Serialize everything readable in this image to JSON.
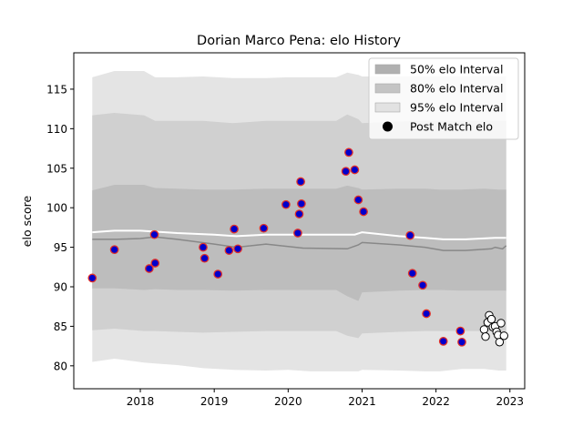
{
  "chart_data": {
    "type": "scatter",
    "title": "Dorian Marco Pena: elo History",
    "xlabel": "",
    "ylabel": "elo score",
    "xlim": [
      2017.1,
      2023.2
    ],
    "ylim": [
      77.1,
      119.6
    ],
    "x_ticks": [
      2018,
      2019,
      2020,
      2021,
      2022,
      2023
    ],
    "y_ticks": [
      80,
      85,
      90,
      95,
      100,
      105,
      110,
      115
    ],
    "grid": false,
    "legend_position": "top-right",
    "legend": [
      {
        "label": "50% elo Interval",
        "kind": "patch",
        "color": "#b0b0b0"
      },
      {
        "label": "80% elo Interval",
        "kind": "patch",
        "color": "#c4c4c4"
      },
      {
        "label": "95% elo Interval",
        "kind": "patch",
        "color": "#e2e2e2"
      },
      {
        "label": "Post Match elo",
        "kind": "marker",
        "color": "#000000"
      }
    ],
    "colors": {
      "band95": "#e4e4e4",
      "band80": "#d0d0d0",
      "band50": "#bdbdbd",
      "mean_line": "#ffffff",
      "median_line": "#888888",
      "point_fill": "#0000cc",
      "point_edge": "#e0302a",
      "future_fill": "#ffffff",
      "future_edge": "#000000"
    },
    "bands": {
      "x": [
        2017.35,
        2017.65,
        2018.05,
        2018.2,
        2018.5,
        2018.85,
        2019.25,
        2019.7,
        2020.0,
        2020.3,
        2020.65,
        2020.8,
        2020.95,
        2021.0,
        2021.5,
        2021.85,
        2022.05,
        2022.35,
        2022.65,
        2022.85,
        2022.95
      ],
      "p95_upper": [
        116.5,
        117.3,
        117.3,
        116.5,
        116.5,
        116.6,
        116.4,
        116.4,
        116.5,
        116.5,
        116.5,
        117.1,
        116.8,
        116.6,
        116.6,
        116.6,
        116.6,
        116.6,
        116.7,
        116.6,
        116.6
      ],
      "p80_upper": [
        111.7,
        112.0,
        111.7,
        111.0,
        111.0,
        111.0,
        110.7,
        111.0,
        111.0,
        111.0,
        111.0,
        111.8,
        111.2,
        110.7,
        110.9,
        111.0,
        111.0,
        111.0,
        111.0,
        111.0,
        111.0
      ],
      "p50_upper": [
        102.2,
        102.9,
        102.9,
        102.5,
        102.4,
        102.3,
        102.3,
        102.4,
        102.4,
        102.4,
        102.4,
        102.8,
        102.5,
        102.3,
        102.4,
        102.4,
        102.3,
        102.3,
        102.4,
        102.3,
        102.3
      ],
      "p50_lower": [
        89.8,
        89.8,
        89.6,
        89.7,
        89.6,
        89.6,
        89.5,
        89.6,
        89.6,
        89.6,
        89.6,
        88.8,
        88.2,
        89.3,
        89.5,
        89.6,
        89.6,
        89.5,
        89.5,
        89.5,
        89.5
      ],
      "p80_lower": [
        84.5,
        84.7,
        84.4,
        84.4,
        84.3,
        84.2,
        84.3,
        84.4,
        84.4,
        84.4,
        84.4,
        83.8,
        83.5,
        84.1,
        84.3,
        84.4,
        84.4,
        84.4,
        84.4,
        84.4,
        84.4
      ],
      "p95_lower": [
        80.5,
        80.9,
        80.4,
        80.3,
        80.1,
        79.7,
        79.5,
        79.4,
        79.5,
        79.3,
        79.3,
        79.3,
        79.3,
        79.5,
        79.4,
        79.3,
        79.3,
        79.6,
        79.6,
        79.4,
        79.4
      ]
    },
    "mean_line": {
      "x": [
        2017.35,
        2017.65,
        2018.0,
        2018.5,
        2019.0,
        2019.3,
        2019.7,
        2020.0,
        2020.5,
        2020.9,
        2021.0,
        2021.5,
        2021.85,
        2022.1,
        2022.4,
        2022.8,
        2022.95
      ],
      "y": [
        96.9,
        97.1,
        97.1,
        96.8,
        96.6,
        96.4,
        96.6,
        96.6,
        96.6,
        96.6,
        96.9,
        96.4,
        96.2,
        96.0,
        96.0,
        96.2,
        96.2
      ]
    },
    "median_line": {
      "x": [
        2017.35,
        2017.65,
        2018.0,
        2018.2,
        2018.5,
        2019.0,
        2019.3,
        2019.7,
        2020.0,
        2020.2,
        2020.8,
        2020.95,
        2021.0,
        2021.5,
        2021.85,
        2022.1,
        2022.4,
        2022.75,
        2022.8,
        2022.9,
        2022.95
      ],
      "y": [
        96.0,
        96.0,
        96.1,
        96.3,
        96.0,
        95.4,
        95.0,
        95.4,
        95.1,
        94.9,
        94.8,
        95.3,
        95.6,
        95.3,
        95.0,
        94.6,
        94.6,
        94.8,
        95.0,
        94.8,
        95.2
      ]
    },
    "post_match_points": [
      {
        "x": 2017.35,
        "y": 91.1
      },
      {
        "x": 2017.65,
        "y": 94.7
      },
      {
        "x": 2018.12,
        "y": 92.3
      },
      {
        "x": 2018.19,
        "y": 96.6
      },
      {
        "x": 2018.2,
        "y": 93.0
      },
      {
        "x": 2018.85,
        "y": 95.0
      },
      {
        "x": 2018.87,
        "y": 93.6
      },
      {
        "x": 2019.05,
        "y": 91.6
      },
      {
        "x": 2019.2,
        "y": 94.6
      },
      {
        "x": 2019.27,
        "y": 97.3
      },
      {
        "x": 2019.32,
        "y": 94.8
      },
      {
        "x": 2019.67,
        "y": 97.4
      },
      {
        "x": 2019.97,
        "y": 100.4
      },
      {
        "x": 2020.13,
        "y": 96.8
      },
      {
        "x": 2020.15,
        "y": 99.2
      },
      {
        "x": 2020.17,
        "y": 103.3
      },
      {
        "x": 2020.18,
        "y": 100.5
      },
      {
        "x": 2020.78,
        "y": 104.6
      },
      {
        "x": 2020.82,
        "y": 107.0
      },
      {
        "x": 2020.9,
        "y": 104.8
      },
      {
        "x": 2020.95,
        "y": 101.0
      },
      {
        "x": 2021.02,
        "y": 99.5
      },
      {
        "x": 2021.65,
        "y": 96.5
      },
      {
        "x": 2021.68,
        "y": 91.7
      },
      {
        "x": 2021.82,
        "y": 90.2
      },
      {
        "x": 2021.87,
        "y": 86.6
      },
      {
        "x": 2022.1,
        "y": 83.1
      },
      {
        "x": 2022.33,
        "y": 84.4
      },
      {
        "x": 2022.35,
        "y": 83.0
      }
    ],
    "future_points": [
      {
        "x": 2022.65,
        "y": 84.6
      },
      {
        "x": 2022.67,
        "y": 83.7
      },
      {
        "x": 2022.7,
        "y": 85.5
      },
      {
        "x": 2022.72,
        "y": 86.4
      },
      {
        "x": 2022.75,
        "y": 85.9
      },
      {
        "x": 2022.77,
        "y": 84.9
      },
      {
        "x": 2022.8,
        "y": 85.0
      },
      {
        "x": 2022.82,
        "y": 84.3
      },
      {
        "x": 2022.84,
        "y": 83.9
      },
      {
        "x": 2022.86,
        "y": 83.0
      },
      {
        "x": 2022.88,
        "y": 85.4
      },
      {
        "x": 2022.92,
        "y": 83.8
      }
    ]
  }
}
